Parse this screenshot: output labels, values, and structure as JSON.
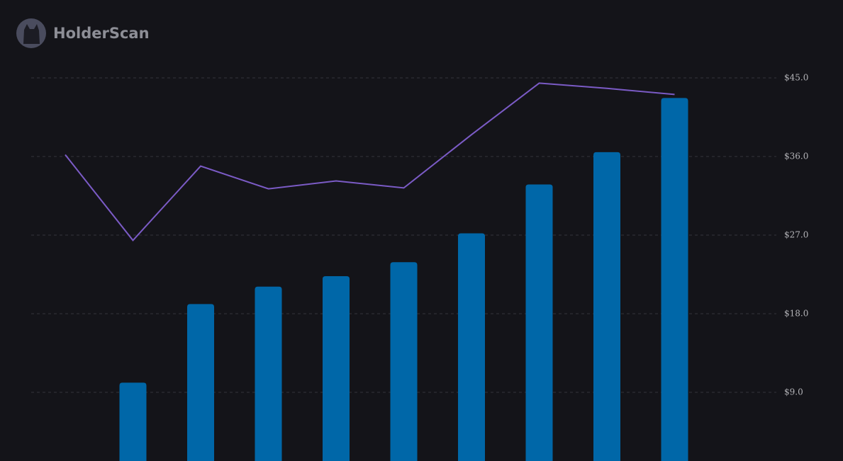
{
  "brand": "HolderScan",
  "chart_data": {
    "type": "combo",
    "categories": [
      null,
      null,
      null,
      null,
      null,
      null,
      null,
      null,
      null,
      null
    ],
    "series": [
      {
        "type": "bar",
        "color": "#0067a8",
        "values": [
          null,
          10.1,
          19.1,
          21.1,
          22.3,
          23.9,
          27.2,
          32.8,
          36.5,
          40.4
        ]
      },
      {
        "type": "bar",
        "color": "#0067a8",
        "values": [
          null,
          null,
          null,
          null,
          null,
          null,
          null,
          null,
          null,
          42.7
        ]
      },
      {
        "type": "line",
        "color": "#7b5bc6",
        "values": [
          36.2,
          26.4,
          34.9,
          32.3,
          33.2,
          32.4,
          38.5,
          44.4,
          43.8,
          43.1
        ]
      }
    ],
    "ylim": [
      0,
      45
    ],
    "yticks": [
      {
        "value": 9,
        "label": "$9.0"
      },
      {
        "value": 18,
        "label": "$18.0"
      },
      {
        "value": 27,
        "label": "$27.0"
      },
      {
        "value": 36,
        "label": "$36.0"
      },
      {
        "value": 45,
        "label": "$45.0"
      }
    ],
    "grid": true
  }
}
